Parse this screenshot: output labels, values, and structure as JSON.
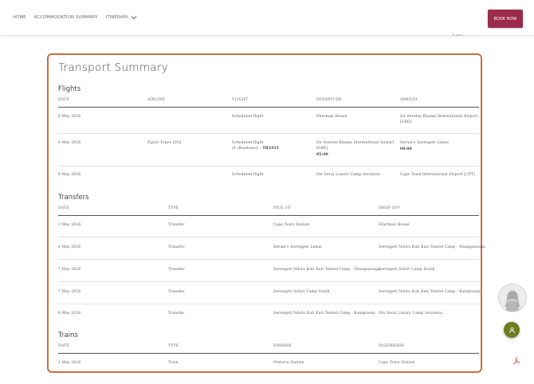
{
  "nav": {
    "items": [
      "HOME",
      "ACCOMMODATION SUMMARY",
      "ITINERARY"
    ],
    "book_label": "BOOK NOW",
    "powered_by": "wetu"
  },
  "card": {
    "title": "Transport Summary",
    "flights": {
      "title": "Flights",
      "headers": [
        "DATE",
        "AIRLINE",
        "FLIGHT",
        "DEPARTURE",
        "ARRIVAL"
      ],
      "rows": [
        {
          "date": "6 May 2026",
          "airline": "",
          "flight1": "Scheduled flight",
          "flight2": "",
          "flight2b": "",
          "dep1": "Ellerman House",
          "dep2": "",
          "arr1": "Sir Seretse Khama International Airport",
          "arr2": "[GBE]"
        },
        {
          "date": "6 May 2026",
          "airline": "Zipair Tokyo [ZG]",
          "flight1": "Scheduled flight",
          "flight2": "(6 (Business)) - ",
          "flight2b": "TB3453",
          "dep1": "Sir Seretse Khama International Airport",
          "dep2": "[GBE]",
          "dep3": "05:00",
          "arr1": "Serian's Serengeti Lamai",
          "arr2": "09:00"
        },
        {
          "date": "8 May 2026",
          "airline": "",
          "flight1": "Scheduled flight",
          "flight2": "",
          "flight2b": "",
          "dep1": "Ole Serai Luxury Camp Seronera",
          "dep2": "",
          "arr1": "Cape Town International Airport [CPT]",
          "arr2": ""
        }
      ]
    },
    "transfers": {
      "title": "Transfers",
      "headers": [
        "DATE",
        "TYPE",
        "PICK UP",
        "DROP OFF"
      ],
      "rows": [
        {
          "date": "3 May 2026",
          "type": "Transfer",
          "pickup": "Cape Town Station",
          "dropoff": "Ellerman House"
        },
        {
          "date": "6 May 2026",
          "type": "Transfer",
          "pickup": "Serian's Serengeti Lamai",
          "dropoff": "Serengeti Ndutu Kati Kati Tented Camp - Ntanganunga"
        },
        {
          "date": "7 May 2026",
          "type": "Transfer",
          "pickup": "Serengeti Ndutu Kati Kati Tented Camp - Ntanganunga",
          "dropoff": "Serengeti Safari Camp South"
        },
        {
          "date": "7 May 2026",
          "type": "Transfer",
          "pickup": "Serengeti Safari Camp South",
          "dropoff": "Serengeti Ndutu Kati Kati Tented Camp - Kakakuona"
        },
        {
          "date": "8 May 2026",
          "type": "Transfer",
          "pickup": "Serengeti Ndutu Kati Kati Tented Camp - Kakakuona",
          "dropoff": "Ole Serai Luxury Camp Seronera"
        }
      ]
    },
    "trains": {
      "title": "Trains",
      "headers": [
        "DATE",
        "TYPE",
        "EMBARK",
        "DISEMBARK"
      ],
      "rows": [
        {
          "date": "1 May 2026",
          "type": "Train",
          "embark": "Pretoria Station",
          "disembark": "Cape Town Station"
        }
      ]
    }
  },
  "colors": {
    "accent_border": "#c86e3f",
    "book_button": "#9c2a4b",
    "fab": "#6f7d1f"
  }
}
